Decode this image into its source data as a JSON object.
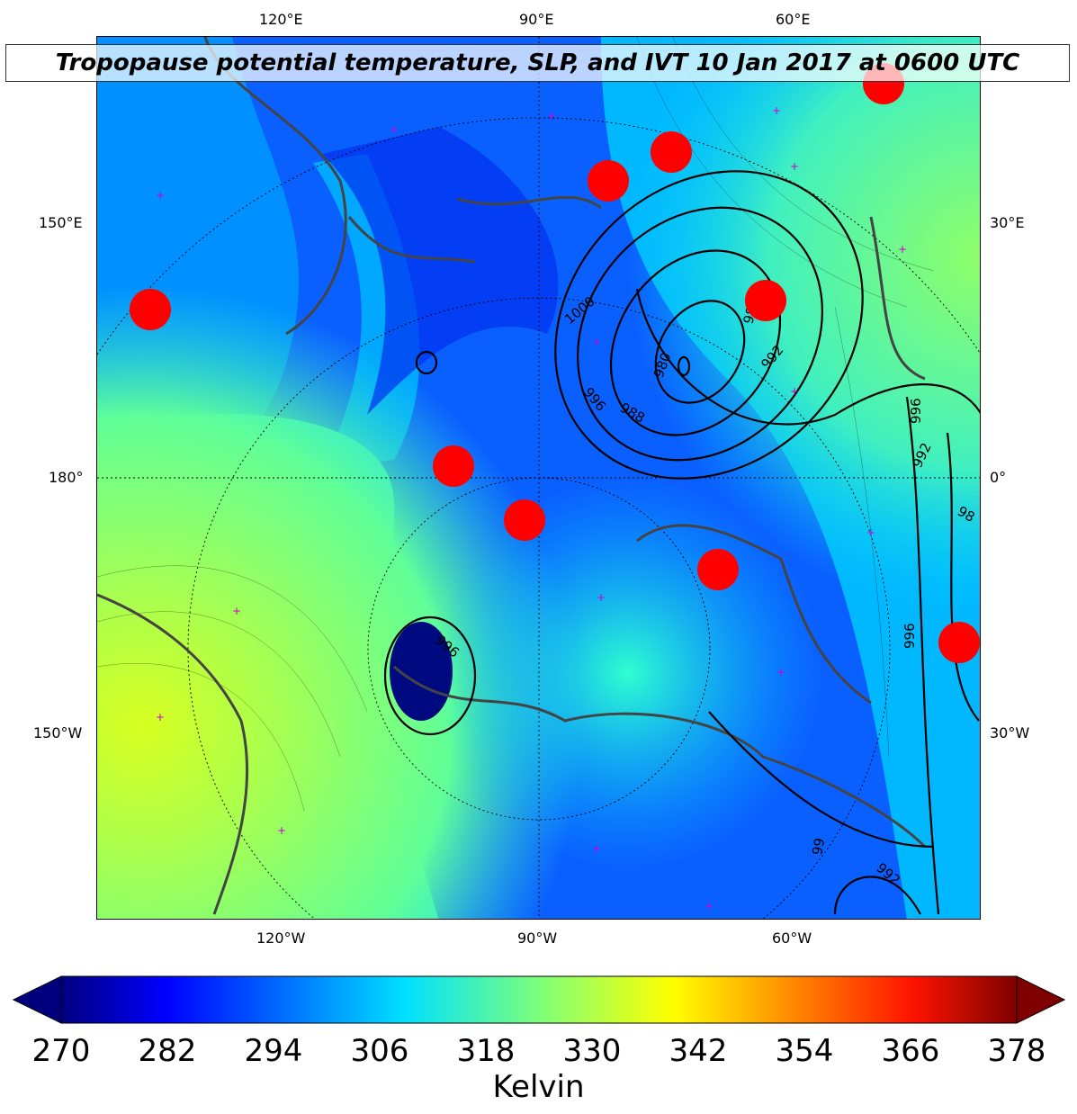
{
  "title": "Tropopause potential temperature, SLP, and IVT 10 Jan 2017 at 0600 UTC",
  "lon_labels_top": [
    "120°E",
    "90°E",
    "60°E"
  ],
  "lon_labels_bottom": [
    "120°W",
    "90°W",
    "60°W"
  ],
  "lat_labels_left": [
    "150°E",
    "180°",
    "150°W"
  ],
  "lat_labels_right": [
    "30°E",
    "0°",
    "30°W"
  ],
  "slp_contour_labels": [
    "1000",
    "984",
    "980",
    "992",
    "996",
    "988",
    "996",
    "992",
    "98",
    "996",
    "996",
    "99",
    "992"
  ],
  "colorbar": {
    "colormap": "jet",
    "min": 270,
    "max": 378,
    "extend": "both",
    "ticks": [
      "270",
      "282",
      "294",
      "306",
      "318",
      "330",
      "342",
      "354",
      "366",
      "378"
    ],
    "label": "Kelvin"
  },
  "colors": {
    "marker": "#ff0000",
    "station": "#cc00cc",
    "coast": "#444444"
  }
}
